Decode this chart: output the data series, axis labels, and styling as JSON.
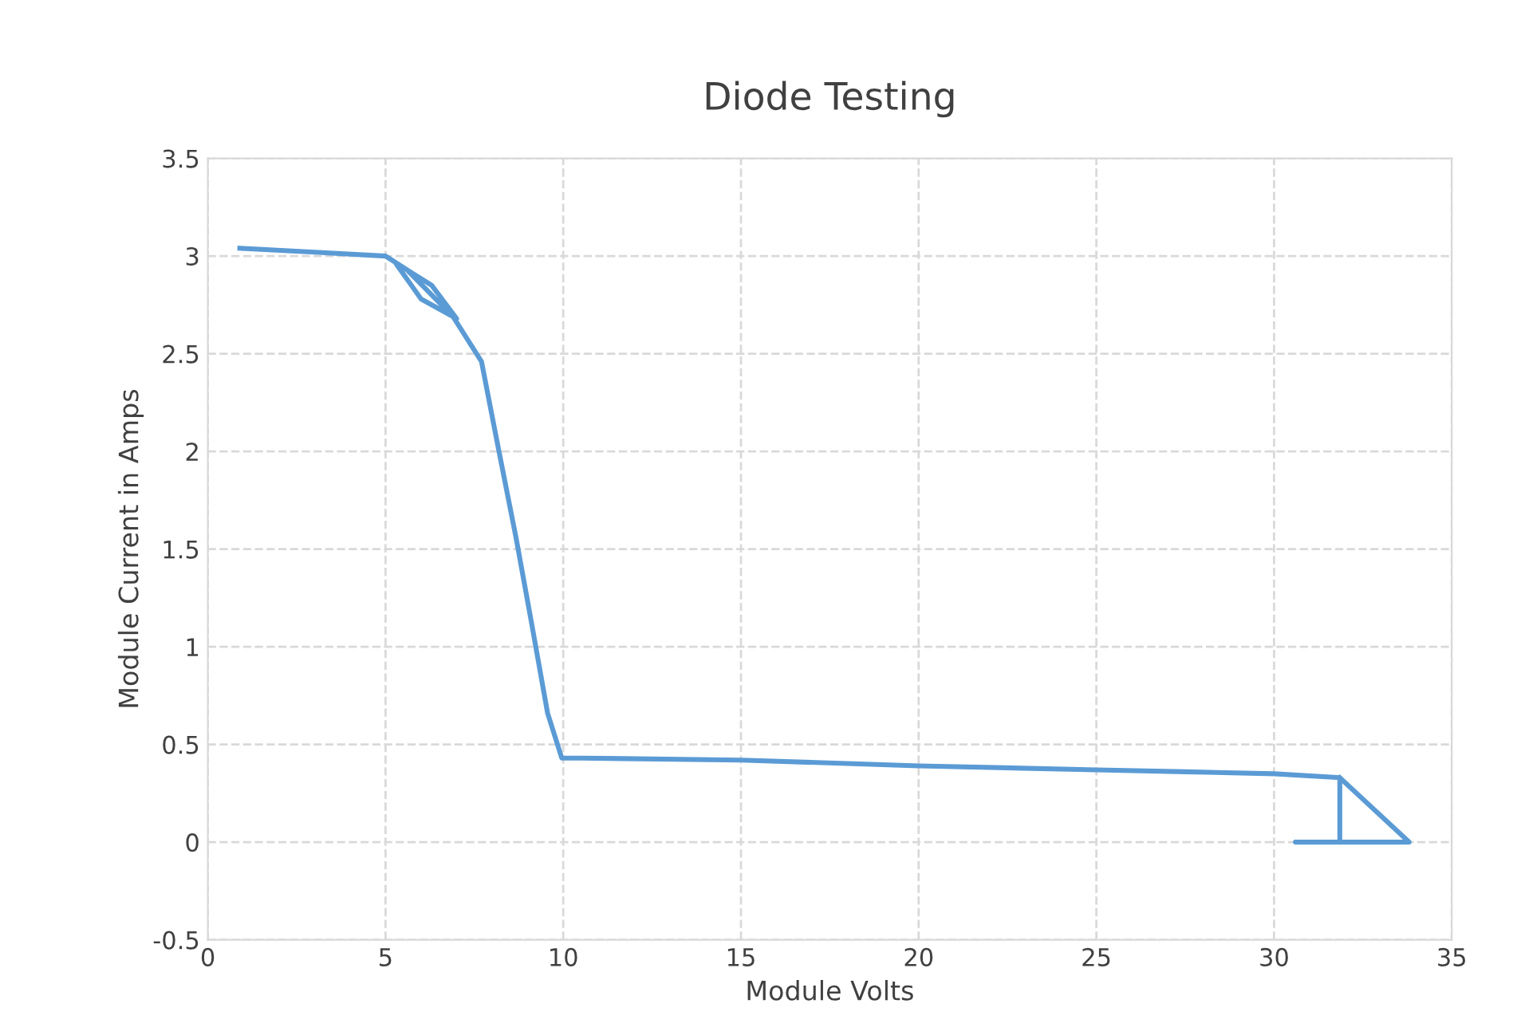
{
  "chart_data": {
    "type": "line",
    "title": "Diode Testing",
    "xlabel": "Module Volts",
    "ylabel": "Module Current in Amps",
    "series": [
      {
        "color": "#5b9bd5",
        "x": [
          0.9,
          3.0,
          5.0,
          5.6,
          6.3,
          7.0,
          6.0,
          5.3,
          5.6,
          6.9,
          7.7,
          8.17,
          8.67,
          9.1,
          9.56,
          9.96,
          10.5,
          15,
          20,
          25,
          27.5,
          30,
          31.85,
          31.85,
          30.6,
          33.8,
          31.85
        ],
        "values": [
          3.04,
          3.02,
          3.0,
          2.93,
          2.85,
          2.68,
          2.78,
          2.96,
          2.93,
          2.69,
          2.46,
          2.02,
          1.56,
          1.13,
          0.66,
          0.43,
          0.43,
          0.42,
          0.39,
          0.37,
          0.36,
          0.35,
          0.33,
          0.0,
          0.0,
          0.0,
          0.33
        ]
      }
    ],
    "xlim": [
      0,
      35
    ],
    "xticks": [
      0,
      5,
      10,
      15,
      20,
      25,
      30,
      35
    ],
    "ylim": [
      -0.5,
      3.5
    ],
    "yticks": [
      -0.5,
      0,
      0.5,
      1,
      1.5,
      2,
      2.5,
      3,
      3.5
    ],
    "grid": true,
    "marker": "none",
    "line_style": "solid"
  }
}
